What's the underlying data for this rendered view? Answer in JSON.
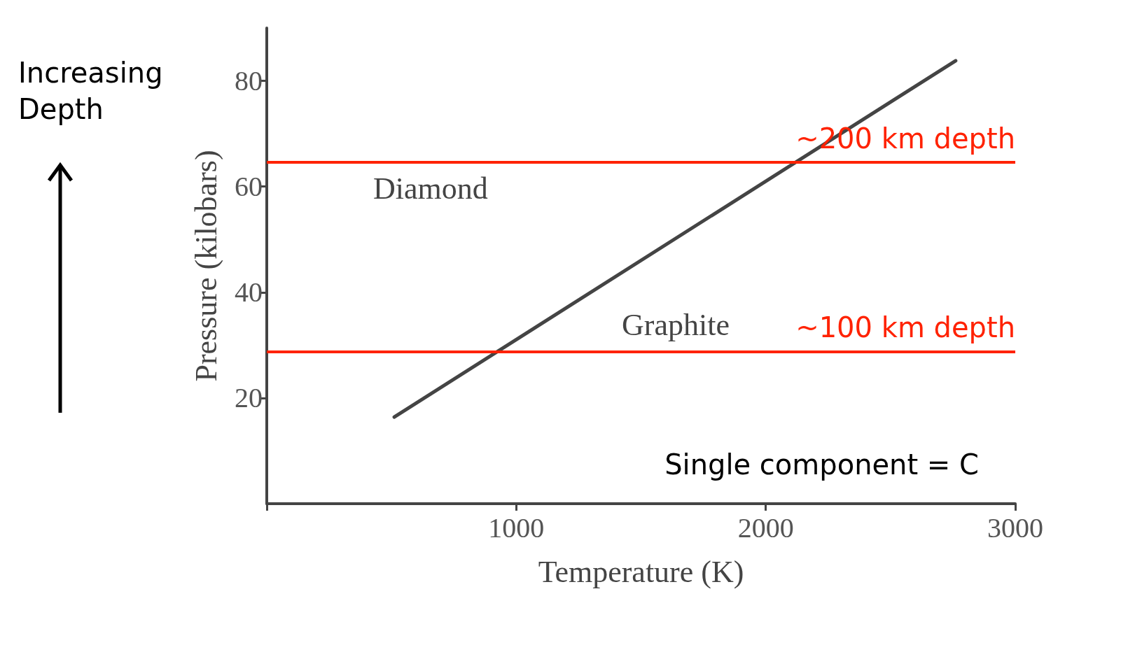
{
  "chart_data": {
    "type": "line",
    "xlabel": "Temperature (K)",
    "ylabel": "Pressure (kilobars)",
    "x": [
      511,
      2761
    ],
    "series": [
      {
        "color": "#444444",
        "values": [
          16.4,
          83.8
        ]
      }
    ],
    "xlim": [
      0,
      3000
    ],
    "xticks": [
      {
        "value": 0,
        "label": null
      },
      1000,
      2000,
      3000
    ],
    "ylim": [
      0,
      90
    ],
    "yticks": [
      20,
      40,
      60,
      80
    ],
    "ref_lines": [
      {
        "axis": "y",
        "value": 64.6,
        "label": "~200 km depth",
        "color": "#ff2200"
      },
      {
        "axis": "y",
        "value": 28.8,
        "label": "~100 km depth",
        "color": "#ff2200"
      }
    ],
    "annotations": [
      "Diamond",
      "Graphite",
      "Single component = C",
      "Increasing Depth"
    ],
    "grid": false,
    "marker": "none",
    "line_style": "solid"
  }
}
